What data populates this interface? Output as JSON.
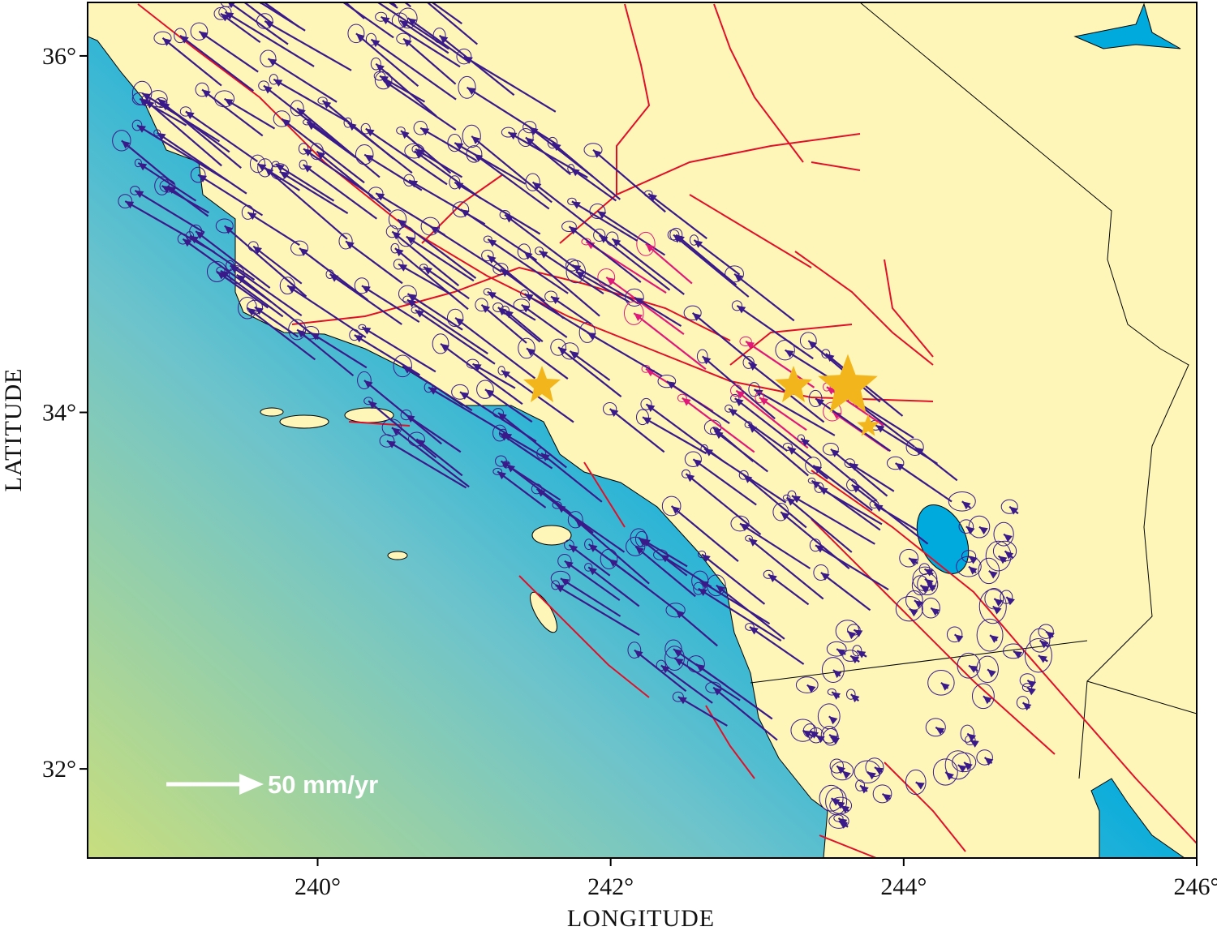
{
  "map": {
    "xlabel": "LONGITUDE",
    "ylabel": "LATITUDE",
    "xlim": [
      238.43,
      246
    ],
    "ylim": [
      31.5,
      36.3
    ],
    "xticks": [
      {
        "value": 240,
        "label": "240°"
      },
      {
        "value": 242,
        "label": "242°"
      },
      {
        "value": 244,
        "label": "244°"
      },
      {
        "value": 246,
        "label": "246°"
      }
    ],
    "yticks": [
      {
        "value": 32,
        "label": "32°"
      },
      {
        "value": 34,
        "label": "34°"
      },
      {
        "value": 36,
        "label": "36°"
      }
    ],
    "scale_label": "50 mm/yr"
  }
}
